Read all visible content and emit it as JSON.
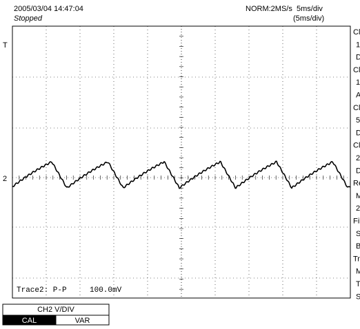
{
  "header": {
    "datetime": "2005/03/04 14:47:04",
    "status": "Stopped",
    "mode": "NORM:2MS/s",
    "timebase": "5ms/div",
    "timebase_set": "(5ms/div)"
  },
  "markers": {
    "trigger": "T",
    "channel": "2"
  },
  "measurement": {
    "label": "Trace2: P-P",
    "value": "100.0mV"
  },
  "side_labels": [
    "Cl",
    "1",
    "D",
    "Cl",
    "1",
    "A",
    "Cl",
    "5",
    "D",
    "Cl",
    "2",
    "D",
    "Re",
    "M",
    "2",
    "Fil",
    "S",
    "B",
    "Tr",
    "M",
    "T",
    "S"
  ],
  "menu": {
    "title": "CH2 V/DIV",
    "options": [
      "CAL",
      "VAR"
    ]
  }
}
